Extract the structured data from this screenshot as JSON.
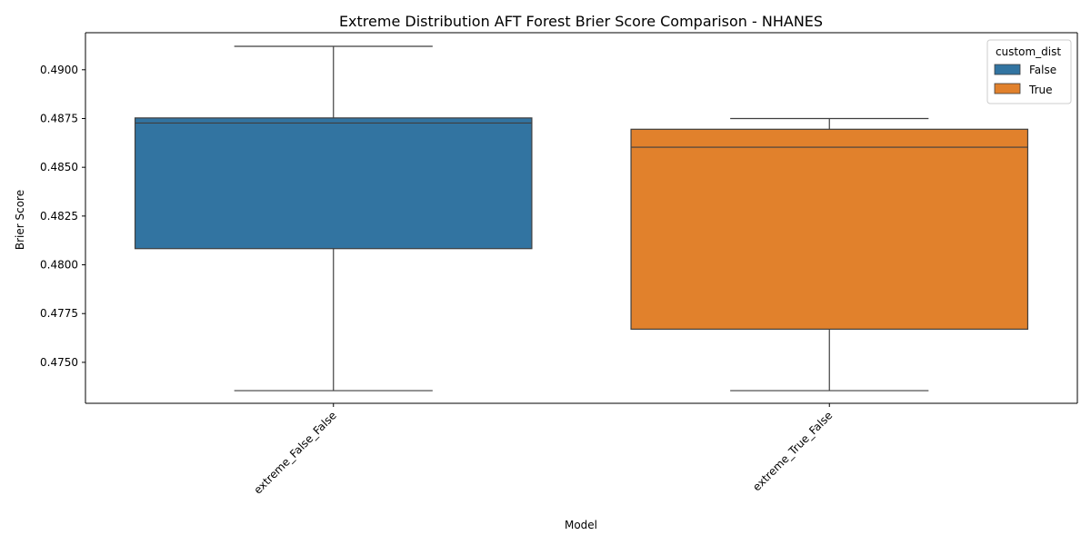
{
  "chart_data": {
    "type": "box",
    "title": "Extreme Distribution AFT Forest Brier Score Comparison - NHANES",
    "xlabel": "Model",
    "ylabel": "Brier Score",
    "ylim": [
      0.4729,
      0.4919
    ],
    "yticks": [
      "0.4750",
      "0.4775",
      "0.4800",
      "0.4825",
      "0.4850",
      "0.4875",
      "0.4900"
    ],
    "categories": [
      "extreme_False_False",
      "extreme_True_False"
    ],
    "grid": false,
    "legend": {
      "title": "custom_dist",
      "position": "top-right",
      "entries": [
        {
          "label": "False",
          "color": "#3274a1"
        },
        {
          "label": "True",
          "color": "#e1812c"
        }
      ]
    },
    "series": [
      {
        "name": "False",
        "category": "extreme_False_False",
        "color": "#3274a1",
        "whisker_low": 0.47355,
        "q1": 0.48083,
        "median": 0.48727,
        "q3": 0.48753,
        "whisker_high": 0.4912
      },
      {
        "name": "True",
        "category": "extreme_True_False",
        "color": "#e1812c",
        "whisker_low": 0.47355,
        "q1": 0.4767,
        "median": 0.48603,
        "q3": 0.48695,
        "whisker_high": 0.4875
      }
    ]
  }
}
